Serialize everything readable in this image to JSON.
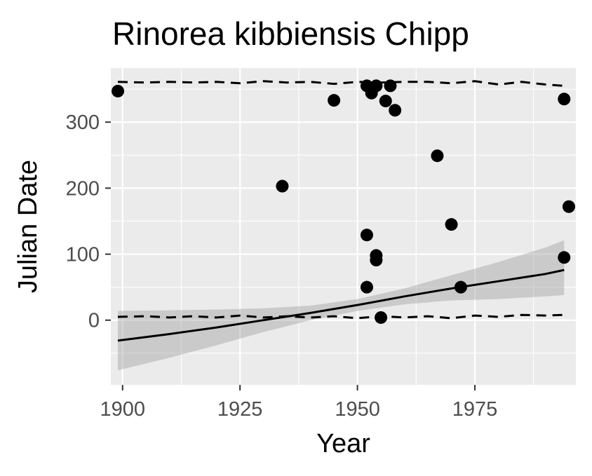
{
  "chart_data": {
    "type": "scatter",
    "title": "Rinorea kibbiensis Chipp",
    "xlabel": "Year",
    "ylabel": "Julian Date",
    "xlim": [
      1897.5,
      1996.5
    ],
    "ylim": [
      -98,
      382
    ],
    "x_ticks": [
      1900,
      1925,
      1950,
      1975
    ],
    "x_minor_ticks": [
      1912.5,
      1937.5,
      1962.5,
      1987.5
    ],
    "y_ticks": [
      0,
      100,
      200,
      300
    ],
    "y_minor_ticks": [
      -50,
      50,
      150,
      250,
      350
    ],
    "grid": true,
    "legend": "none",
    "colors": {
      "panel": "#ebebeb",
      "grid": "#ffffff",
      "points": "#000000",
      "ribbon": "#999999"
    },
    "points": [
      {
        "x": 1899,
        "y": 347
      },
      {
        "x": 1934,
        "y": 203
      },
      {
        "x": 1945,
        "y": 333
      },
      {
        "x": 1952,
        "y": 355
      },
      {
        "x": 1952,
        "y": 129
      },
      {
        "x": 1952,
        "y": 50
      },
      {
        "x": 1953,
        "y": 344
      },
      {
        "x": 1954,
        "y": 355
      },
      {
        "x": 1954,
        "y": 98
      },
      {
        "x": 1954,
        "y": 91
      },
      {
        "x": 1955,
        "y": 4
      },
      {
        "x": 1956,
        "y": 332
      },
      {
        "x": 1957,
        "y": 355
      },
      {
        "x": 1958,
        "y": 318
      },
      {
        "x": 1967,
        "y": 249
      },
      {
        "x": 1970,
        "y": 145
      },
      {
        "x": 1972,
        "y": 50
      },
      {
        "x": 1994,
        "y": 335
      },
      {
        "x": 1994,
        "y": 95
      },
      {
        "x": 1995,
        "y": 172
      }
    ],
    "trend_line": {
      "x": [
        1899,
        1910,
        1920,
        1930,
        1940,
        1950,
        1960,
        1970,
        1980,
        1990,
        1994
      ],
      "y": [
        -31,
        -21,
        -11,
        0,
        11,
        23,
        36,
        48,
        59,
        70,
        76
      ]
    },
    "confidence_band": {
      "x": [
        1899,
        1910,
        1920,
        1930,
        1940,
        1950,
        1960,
        1970,
        1980,
        1990,
        1994
      ],
      "upper": [
        14,
        15,
        16,
        18,
        22,
        32,
        48,
        68,
        88,
        110,
        121
      ],
      "lower": [
        -76,
        -57,
        -38,
        -18,
        0,
        14,
        24,
        30,
        32,
        36,
        38
      ]
    },
    "upper_quantile_line": {
      "x": [
        1899,
        1905,
        1910,
        1915,
        1920,
        1925,
        1930,
        1935,
        1940,
        1945,
        1950,
        1955,
        1960,
        1965,
        1970,
        1975,
        1980,
        1985,
        1990,
        1994
      ],
      "y": [
        361,
        360,
        361,
        360,
        361,
        359,
        362,
        360,
        361,
        358,
        361,
        360,
        361,
        361,
        359,
        362,
        357,
        361,
        357,
        355
      ]
    },
    "lower_quantile_line": {
      "x": [
        1899,
        1905,
        1910,
        1915,
        1920,
        1925,
        1930,
        1935,
        1940,
        1945,
        1950,
        1955,
        1960,
        1965,
        1970,
        1975,
        1980,
        1985,
        1990,
        1994
      ],
      "y": [
        5,
        6,
        4,
        6,
        4,
        7,
        4,
        6,
        4,
        6,
        3,
        6,
        4,
        6,
        3,
        7,
        5,
        8,
        7,
        8
      ]
    }
  }
}
